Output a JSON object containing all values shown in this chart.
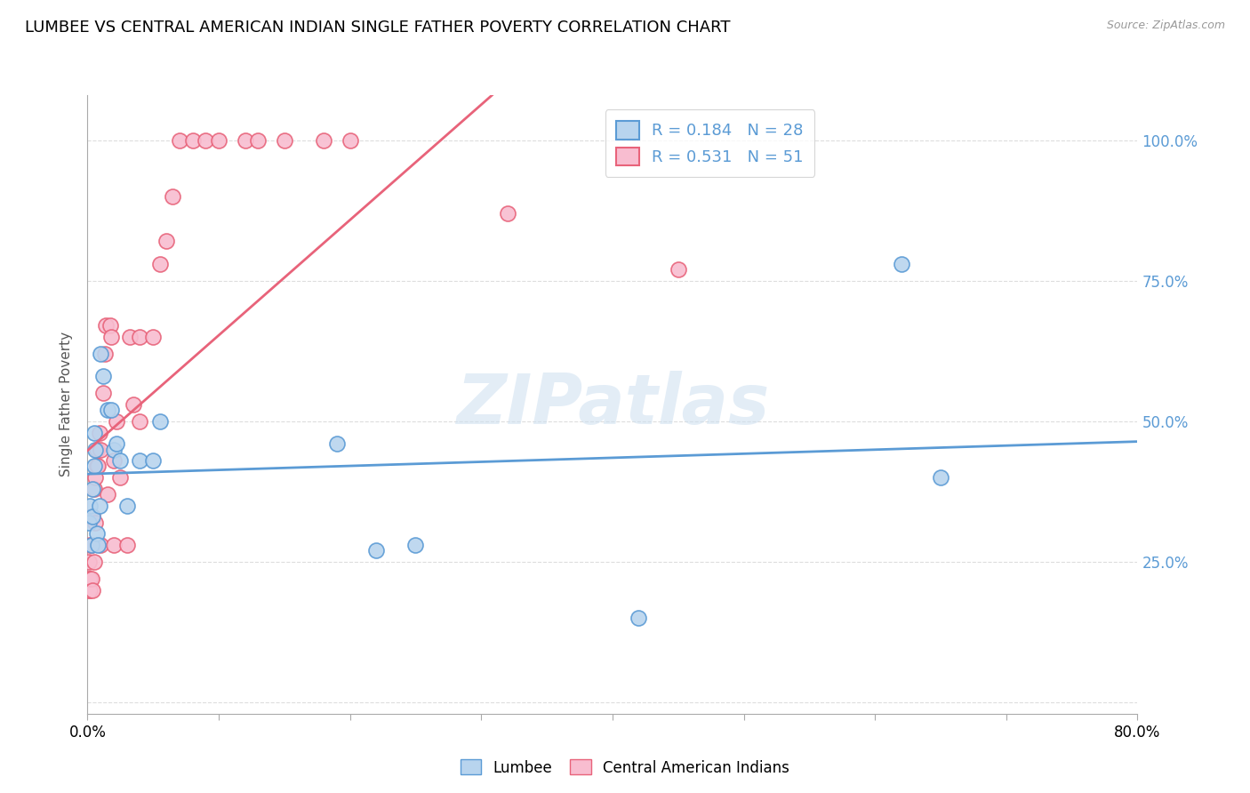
{
  "title": "LUMBEE VS CENTRAL AMERICAN INDIAN SINGLE FATHER POVERTY CORRELATION CHART",
  "source": "Source: ZipAtlas.com",
  "ylabel": "Single Father Poverty",
  "xlim": [
    0.0,
    0.8
  ],
  "ylim": [
    -0.02,
    1.08
  ],
  "lumbee_R": 0.184,
  "lumbee_N": 28,
  "central_R": 0.531,
  "central_N": 51,
  "lumbee_color": "#b8d4ee",
  "central_color": "#f8bdd0",
  "lumbee_line_color": "#5b9bd5",
  "central_line_color": "#e8637a",
  "watermark": "ZIPatlas",
  "lumbee_x": [
    0.001,
    0.002,
    0.003,
    0.004,
    0.004,
    0.005,
    0.005,
    0.006,
    0.007,
    0.008,
    0.009,
    0.01,
    0.012,
    0.015,
    0.018,
    0.02,
    0.022,
    0.025,
    0.03,
    0.04,
    0.05,
    0.055,
    0.19,
    0.22,
    0.25,
    0.42,
    0.62,
    0.65
  ],
  "lumbee_y": [
    0.32,
    0.35,
    0.28,
    0.33,
    0.38,
    0.42,
    0.48,
    0.45,
    0.3,
    0.28,
    0.35,
    0.62,
    0.58,
    0.52,
    0.52,
    0.45,
    0.46,
    0.43,
    0.35,
    0.43,
    0.43,
    0.5,
    0.46,
    0.27,
    0.28,
    0.15,
    0.78,
    0.4
  ],
  "central_x": [
    0.001,
    0.001,
    0.001,
    0.002,
    0.002,
    0.002,
    0.003,
    0.003,
    0.003,
    0.004,
    0.004,
    0.005,
    0.005,
    0.006,
    0.006,
    0.007,
    0.007,
    0.008,
    0.009,
    0.01,
    0.01,
    0.012,
    0.013,
    0.014,
    0.015,
    0.017,
    0.018,
    0.02,
    0.02,
    0.022,
    0.025,
    0.03,
    0.032,
    0.035,
    0.04,
    0.04,
    0.05,
    0.055,
    0.06,
    0.065,
    0.07,
    0.08,
    0.09,
    0.1,
    0.12,
    0.13,
    0.15,
    0.18,
    0.2,
    0.32,
    0.45
  ],
  "central_y": [
    0.2,
    0.22,
    0.25,
    0.2,
    0.22,
    0.28,
    0.22,
    0.28,
    0.33,
    0.2,
    0.33,
    0.25,
    0.38,
    0.32,
    0.4,
    0.42,
    0.45,
    0.42,
    0.48,
    0.28,
    0.45,
    0.55,
    0.62,
    0.67,
    0.37,
    0.67,
    0.65,
    0.28,
    0.43,
    0.5,
    0.4,
    0.28,
    0.65,
    0.53,
    0.5,
    0.65,
    0.65,
    0.78,
    0.82,
    0.9,
    1.0,
    1.0,
    1.0,
    1.0,
    1.0,
    1.0,
    1.0,
    1.0,
    1.0,
    0.87,
    0.77
  ],
  "central_line_xrange": [
    0.0,
    0.45
  ],
  "lumbee_line_xrange": [
    0.0,
    0.8
  ]
}
